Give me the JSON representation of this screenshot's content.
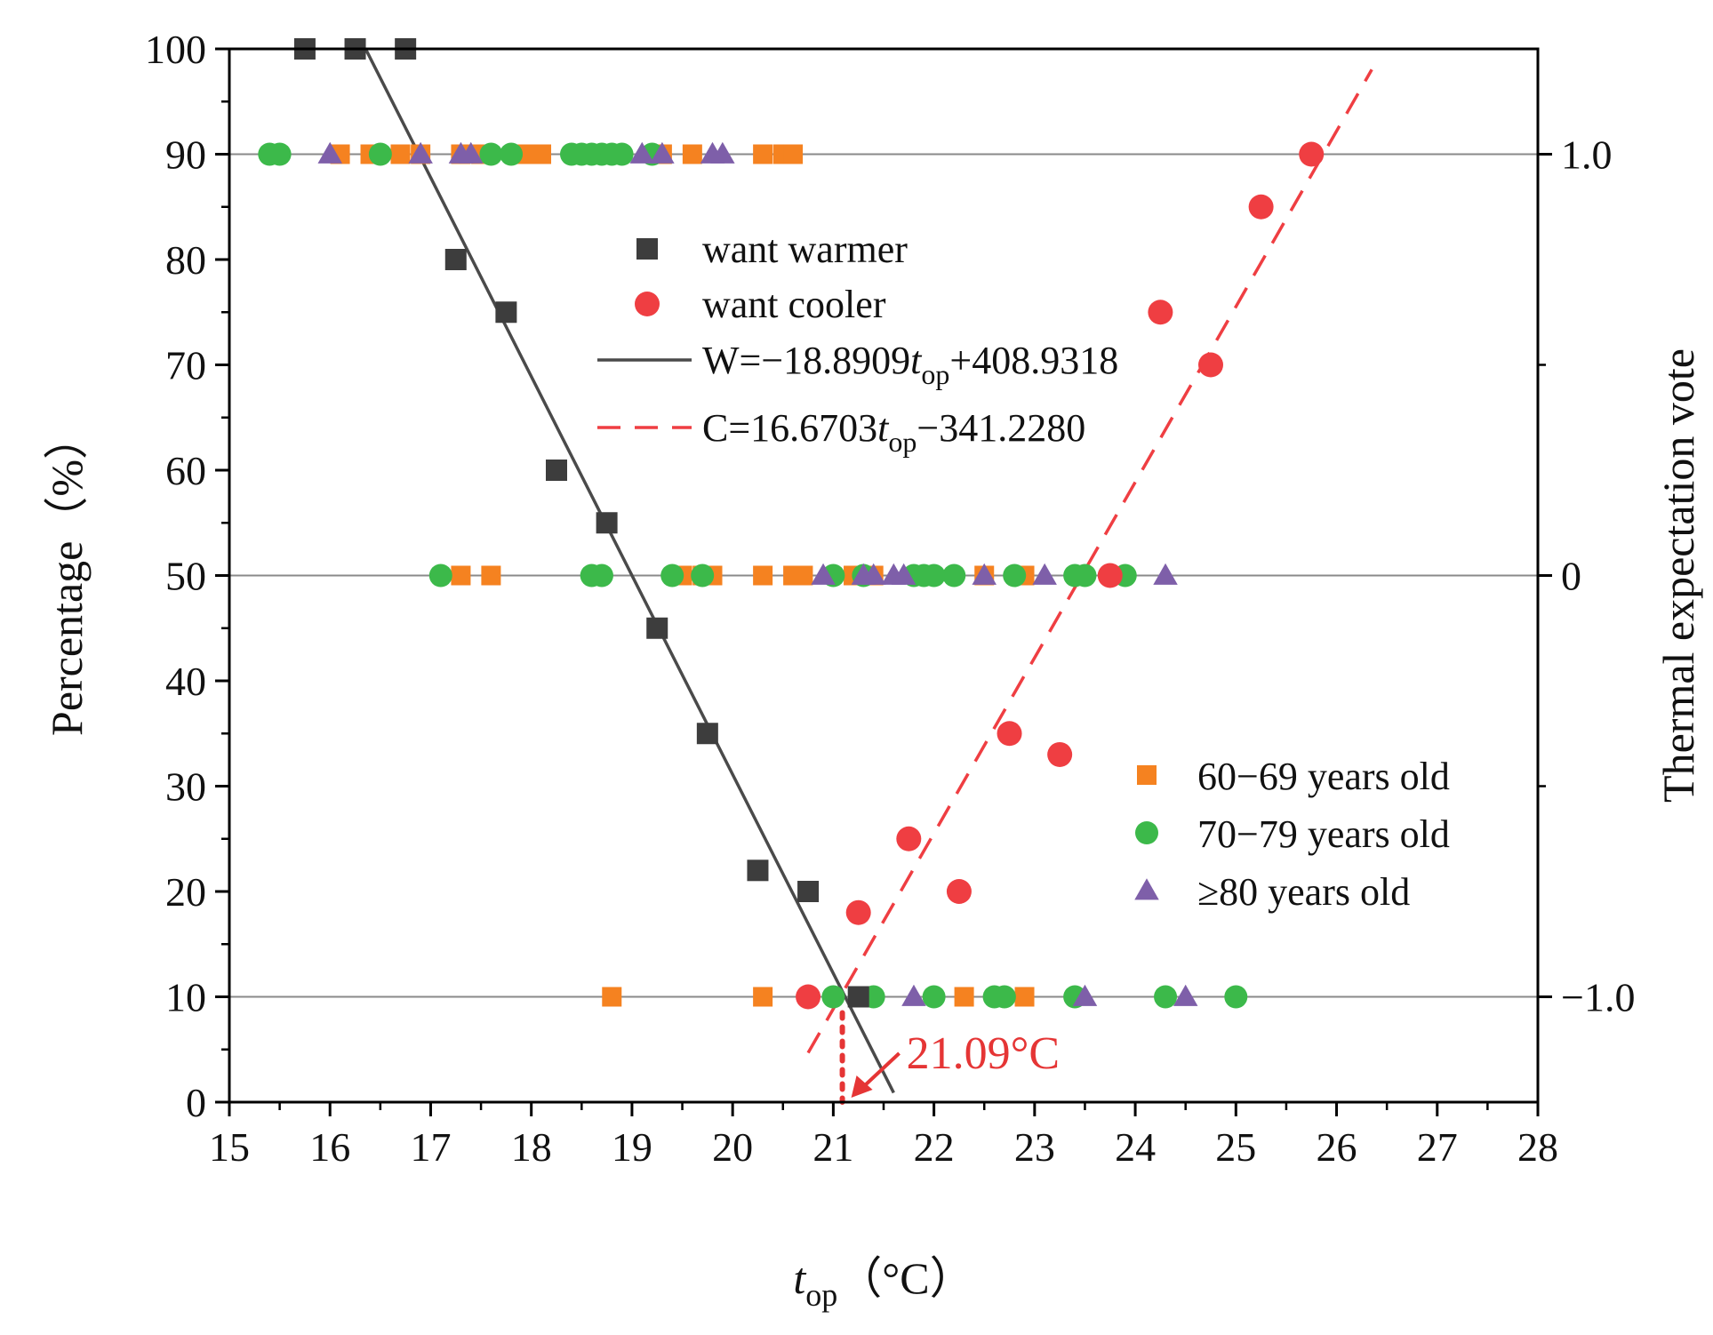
{
  "chart_data": {
    "type": "scatter",
    "xlabel": {
      "main": "t",
      "sub": "op",
      "unit": "（°C）"
    },
    "ylabel_left": "Percentage（%）",
    "ylabel_right": "Thermal expectation vote",
    "xlim": [
      15,
      28
    ],
    "ylim": [
      0,
      100
    ],
    "x_ticks": [
      15,
      16,
      17,
      18,
      19,
      20,
      21,
      22,
      23,
      24,
      25,
      26,
      27,
      28
    ],
    "y_ticks": [
      0,
      10,
      20,
      30,
      40,
      50,
      60,
      70,
      80,
      90,
      100
    ],
    "right_axis": {
      "ticks": [
        {
          "label": "1.0",
          "y": 90
        },
        {
          "label": "0",
          "y": 50
        },
        {
          "label": "−1.0",
          "y": 10
        }
      ]
    },
    "reference_lines_y": [
      90,
      50,
      10
    ],
    "series": [
      {
        "name": "want warmer",
        "marker": "square",
        "color": "#3d3d3d",
        "x": [
          15.75,
          16.25,
          16.75,
          17.25,
          17.75,
          18.25,
          18.75,
          19.25,
          19.75,
          20.25,
          20.75,
          21.25
        ],
        "y": [
          100,
          100,
          100,
          80,
          75,
          60,
          55,
          45,
          35,
          22,
          20,
          10
        ]
      },
      {
        "name": "want cooler",
        "marker": "circle",
        "color": "#ef3e42",
        "x": [
          20.75,
          21.25,
          21.75,
          22.25,
          22.75,
          23.25,
          23.75,
          24.25,
          24.75,
          25.25,
          25.75
        ],
        "y": [
          10,
          18,
          25,
          20,
          35,
          33,
          50,
          75,
          70,
          85,
          90
        ]
      },
      {
        "name": "60−69 years old",
        "marker": "square",
        "color": "#f58220",
        "points": [
          [
            16.1,
            90
          ],
          [
            16.4,
            90
          ],
          [
            16.7,
            90
          ],
          [
            16.9,
            90
          ],
          [
            17.3,
            90
          ],
          [
            17.5,
            90
          ],
          [
            17.9,
            90
          ],
          [
            18.0,
            90
          ],
          [
            18.1,
            90
          ],
          [
            18.8,
            90
          ],
          [
            19.3,
            90
          ],
          [
            19.6,
            90
          ],
          [
            20.3,
            90
          ],
          [
            20.5,
            90
          ],
          [
            20.6,
            90
          ],
          [
            17.3,
            50
          ],
          [
            17.6,
            50
          ],
          [
            19.5,
            50
          ],
          [
            19.7,
            50
          ],
          [
            19.8,
            50
          ],
          [
            20.3,
            50
          ],
          [
            20.6,
            50
          ],
          [
            20.7,
            50
          ],
          [
            21.2,
            50
          ],
          [
            21.4,
            50
          ],
          [
            22.5,
            50
          ],
          [
            22.9,
            50
          ],
          [
            18.8,
            10
          ],
          [
            20.3,
            10
          ],
          [
            22.3,
            10
          ],
          [
            22.9,
            10
          ]
        ]
      },
      {
        "name": "70−79 years old",
        "marker": "circle",
        "color": "#3cb94a",
        "points": [
          [
            15.4,
            90
          ],
          [
            15.5,
            90
          ],
          [
            16.5,
            90
          ],
          [
            17.6,
            90
          ],
          [
            17.8,
            90
          ],
          [
            18.4,
            90
          ],
          [
            18.5,
            90
          ],
          [
            18.6,
            90
          ],
          [
            18.7,
            90
          ],
          [
            18.8,
            90
          ],
          [
            18.9,
            90
          ],
          [
            19.2,
            90
          ],
          [
            17.1,
            50
          ],
          [
            18.6,
            50
          ],
          [
            18.7,
            50
          ],
          [
            19.4,
            50
          ],
          [
            19.7,
            50
          ],
          [
            21.0,
            50
          ],
          [
            21.3,
            50
          ],
          [
            21.8,
            50
          ],
          [
            21.9,
            50
          ],
          [
            22.0,
            50
          ],
          [
            22.2,
            50
          ],
          [
            22.8,
            50
          ],
          [
            23.4,
            50
          ],
          [
            23.5,
            50
          ],
          [
            23.9,
            50
          ],
          [
            21.0,
            10
          ],
          [
            21.4,
            10
          ],
          [
            22.0,
            10
          ],
          [
            22.6,
            10
          ],
          [
            22.7,
            10
          ],
          [
            23.4,
            10
          ],
          [
            24.3,
            10
          ],
          [
            25.0,
            10
          ]
        ]
      },
      {
        "name": "≥80 years old",
        "marker": "triangle",
        "color": "#7e5fa9",
        "points": [
          [
            16.0,
            90
          ],
          [
            16.9,
            90
          ],
          [
            17.3,
            90
          ],
          [
            17.4,
            90
          ],
          [
            19.1,
            90
          ],
          [
            19.3,
            90
          ],
          [
            19.8,
            90
          ],
          [
            19.9,
            90
          ],
          [
            20.9,
            50
          ],
          [
            21.3,
            50
          ],
          [
            21.4,
            50
          ],
          [
            21.6,
            50
          ],
          [
            21.7,
            50
          ],
          [
            22.5,
            50
          ],
          [
            23.1,
            50
          ],
          [
            24.3,
            50
          ],
          [
            21.8,
            10
          ],
          [
            23.5,
            10
          ],
          [
            24.5,
            10
          ]
        ]
      }
    ],
    "fits": [
      {
        "name": "W=−18.8909t_op+408.9318",
        "label_pre": "W=−18.8909",
        "label_var": "t",
        "label_sub": "op",
        "label_post": "+408.9318",
        "slope": -18.8909,
        "intercept": 408.9318,
        "x_range": [
          16.35,
          21.6
        ],
        "style": "solid",
        "color": "#4a4a4a"
      },
      {
        "name": "C=16.6703t_op−341.2280",
        "label_pre": "C=16.6703",
        "label_var": "t",
        "label_sub": "op",
        "label_post": "−341.2280",
        "slope": 16.6703,
        "intercept": -341.228,
        "x_range": [
          20.75,
          26.35
        ],
        "style": "dashed",
        "color": "#ef3e42"
      }
    ],
    "annotation": {
      "text": "21.09°C",
      "x": 21.09,
      "color": "#e53535"
    }
  }
}
